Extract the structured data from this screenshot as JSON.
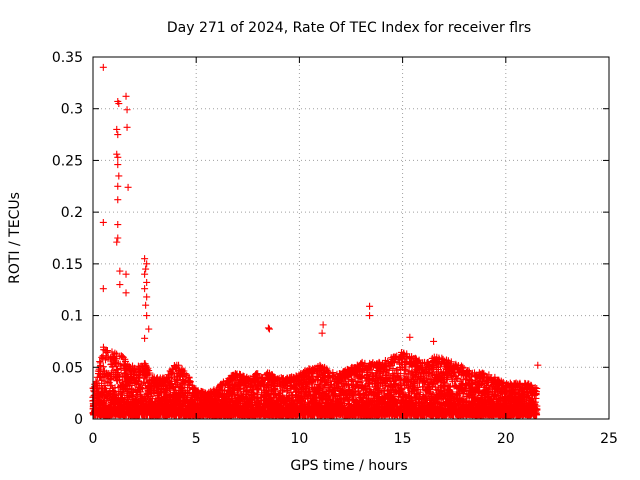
{
  "chart_data": {
    "type": "scatter",
    "title": "Day 271 of 2024, Rate Of TEC Index for receiver flrs",
    "xlabel": "GPS time / hours",
    "ylabel": "ROTI / TECUs",
    "xlim": [
      0,
      25
    ],
    "ylim": [
      0,
      0.35
    ],
    "x_ticks": [
      0,
      5,
      10,
      15,
      20,
      25
    ],
    "x_tick_labels": [
      "0",
      "5",
      "10",
      "15",
      "20",
      "25"
    ],
    "y_ticks": [
      0,
      0.05,
      0.1,
      0.15,
      0.2,
      0.25,
      0.3,
      0.35
    ],
    "y_tick_labels": [
      "0",
      "0.05",
      "0.1",
      "0.15",
      "0.2",
      "0.25",
      "0.3",
      "0.35"
    ],
    "grid": true,
    "marker": "+",
    "color": "#ff0000",
    "series": [
      {
        "name": "ROTI",
        "envelope": {
          "x": [
            0.0,
            0.5,
            1.0,
            1.5,
            2.0,
            2.5,
            3.0,
            3.5,
            4.0,
            4.5,
            5.0,
            5.5,
            6.0,
            6.5,
            7.0,
            7.5,
            8.0,
            8.5,
            9.0,
            9.5,
            10.0,
            10.5,
            11.0,
            11.5,
            12.0,
            12.5,
            13.0,
            13.5,
            14.0,
            14.5,
            15.0,
            15.5,
            16.0,
            16.5,
            17.0,
            17.5,
            18.0,
            18.5,
            19.0,
            19.5,
            20.0,
            20.5,
            21.0,
            21.5
          ],
          "y_max": [
            0.03,
            0.07,
            0.065,
            0.06,
            0.05,
            0.055,
            0.04,
            0.04,
            0.055,
            0.045,
            0.03,
            0.025,
            0.03,
            0.04,
            0.045,
            0.04,
            0.045,
            0.045,
            0.04,
            0.04,
            0.045,
            0.05,
            0.055,
            0.045,
            0.045,
            0.05,
            0.055,
            0.055,
            0.055,
            0.06,
            0.065,
            0.06,
            0.055,
            0.06,
            0.06,
            0.055,
            0.05,
            0.045,
            0.045,
            0.04,
            0.035,
            0.035,
            0.035,
            0.03
          ]
        },
        "outliers": [
          {
            "x": 0.5,
            "y": 0.34
          },
          {
            "x": 0.5,
            "y": 0.19
          },
          {
            "x": 0.5,
            "y": 0.126
          },
          {
            "x": 1.2,
            "y": 0.307
          },
          {
            "x": 1.25,
            "y": 0.305
          },
          {
            "x": 1.15,
            "y": 0.28
          },
          {
            "x": 1.2,
            "y": 0.275
          },
          {
            "x": 1.15,
            "y": 0.256
          },
          {
            "x": 1.2,
            "y": 0.253
          },
          {
            "x": 1.2,
            "y": 0.246
          },
          {
            "x": 1.25,
            "y": 0.235
          },
          {
            "x": 1.2,
            "y": 0.225
          },
          {
            "x": 1.2,
            "y": 0.212
          },
          {
            "x": 1.2,
            "y": 0.188
          },
          {
            "x": 1.2,
            "y": 0.175
          },
          {
            "x": 1.15,
            "y": 0.171
          },
          {
            "x": 1.3,
            "y": 0.143
          },
          {
            "x": 1.3,
            "y": 0.13
          },
          {
            "x": 1.6,
            "y": 0.312
          },
          {
            "x": 1.65,
            "y": 0.299
          },
          {
            "x": 1.65,
            "y": 0.282
          },
          {
            "x": 1.7,
            "y": 0.224
          },
          {
            "x": 1.6,
            "y": 0.14
          },
          {
            "x": 1.6,
            "y": 0.122
          },
          {
            "x": 2.5,
            "y": 0.155
          },
          {
            "x": 2.6,
            "y": 0.15
          },
          {
            "x": 2.55,
            "y": 0.145
          },
          {
            "x": 2.5,
            "y": 0.14
          },
          {
            "x": 2.6,
            "y": 0.132
          },
          {
            "x": 2.5,
            "y": 0.126
          },
          {
            "x": 2.6,
            "y": 0.118
          },
          {
            "x": 2.55,
            "y": 0.11
          },
          {
            "x": 2.6,
            "y": 0.1
          },
          {
            "x": 2.7,
            "y": 0.087
          },
          {
            "x": 2.5,
            "y": 0.078
          },
          {
            "x": 8.5,
            "y": 0.088
          },
          {
            "x": 8.55,
            "y": 0.087
          },
          {
            "x": 11.15,
            "y": 0.091
          },
          {
            "x": 11.1,
            "y": 0.083
          },
          {
            "x": 13.4,
            "y": 0.109
          },
          {
            "x": 13.4,
            "y": 0.1
          },
          {
            "x": 15.35,
            "y": 0.079
          },
          {
            "x": 16.5,
            "y": 0.075
          },
          {
            "x": 21.55,
            "y": 0.052
          }
        ]
      }
    ]
  }
}
